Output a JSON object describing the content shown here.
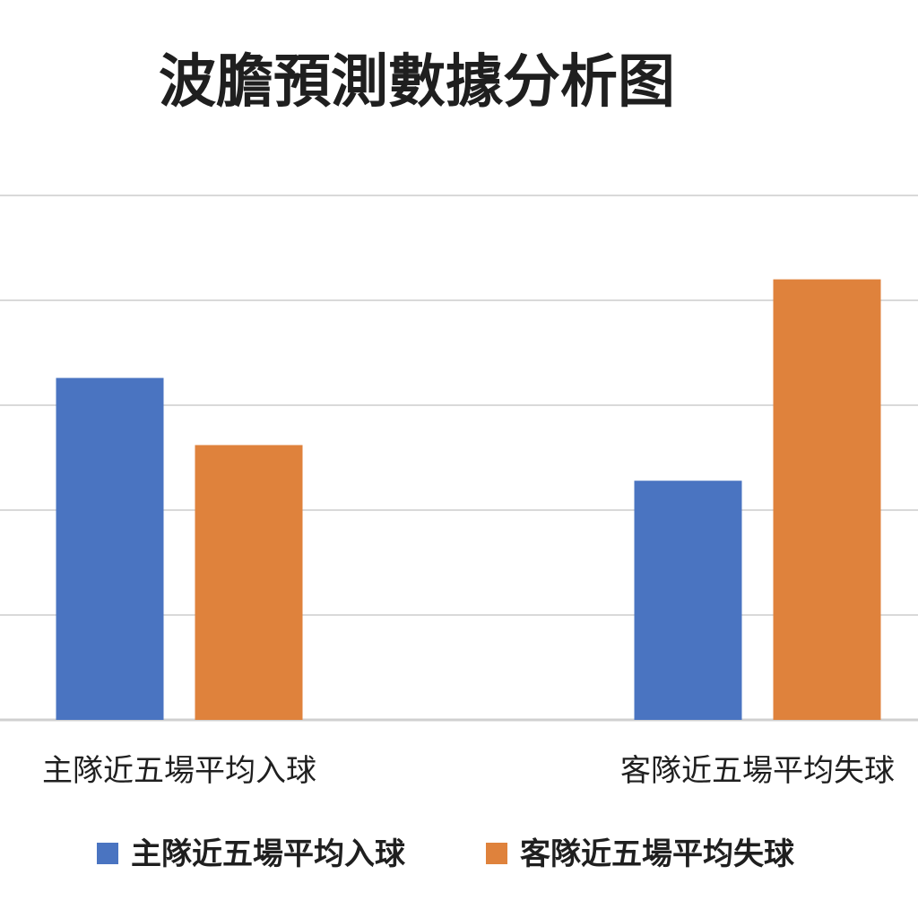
{
  "chart_data": {
    "type": "bar",
    "title": "波膽預測數據分析图",
    "categories": [
      "主隊近五場平均入球",
      "客隊近五場平均失球"
    ],
    "series": [
      {
        "name": "主隊近五場平均入球",
        "color": "#4a74c1",
        "values": [
          1.63,
          1.14
        ]
      },
      {
        "name": "客隊近五場平均失球",
        "color": "#df823c",
        "values": [
          1.31,
          2.1
        ]
      }
    ],
    "xlabel": "",
    "ylabel": "",
    "ylim": [
      0,
      2.5
    ],
    "grid": true,
    "legend_position": "bottom"
  }
}
